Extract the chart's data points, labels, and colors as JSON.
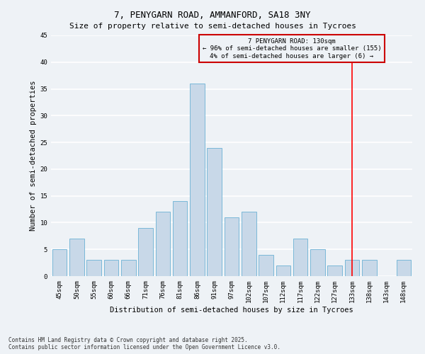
{
  "title": "7, PENYGARN ROAD, AMMANFORD, SA18 3NY",
  "subtitle": "Size of property relative to semi-detached houses in Tycroes",
  "xlabel": "Distribution of semi-detached houses by size in Tycroes",
  "ylabel": "Number of semi-detached properties",
  "categories": [
    "45sqm",
    "50sqm",
    "55sqm",
    "60sqm",
    "66sqm",
    "71sqm",
    "76sqm",
    "81sqm",
    "86sqm",
    "91sqm",
    "97sqm",
    "102sqm",
    "107sqm",
    "112sqm",
    "117sqm",
    "122sqm",
    "127sqm",
    "133sqm",
    "138sqm",
    "143sqm",
    "148sqm"
  ],
  "values": [
    5,
    7,
    3,
    3,
    3,
    9,
    12,
    14,
    36,
    24,
    11,
    12,
    4,
    2,
    7,
    5,
    2,
    3,
    3,
    0,
    3
  ],
  "bar_color": "#c8d8e8",
  "bar_edgecolor": "#7ab8d8",
  "bg_color": "#eef2f6",
  "grid_color": "#ffffff",
  "red_line_x": 17.0,
  "annotation_text": "7 PENYGARN ROAD: 130sqm\n← 96% of semi-detached houses are smaller (155)\n4% of semi-detached houses are larger (6) →",
  "annotation_box_color": "#cc0000",
  "footer_line1": "Contains HM Land Registry data © Crown copyright and database right 2025.",
  "footer_line2": "Contains public sector information licensed under the Open Government Licence v3.0.",
  "ylim": [
    0,
    45
  ],
  "yticks": [
    0,
    5,
    10,
    15,
    20,
    25,
    30,
    35,
    40,
    45
  ],
  "title_fontsize": 9,
  "subtitle_fontsize": 8,
  "tick_fontsize": 6.5,
  "ylabel_fontsize": 7.5,
  "xlabel_fontsize": 7.5,
  "annot_fontsize": 6.5,
  "footer_fontsize": 5.5
}
